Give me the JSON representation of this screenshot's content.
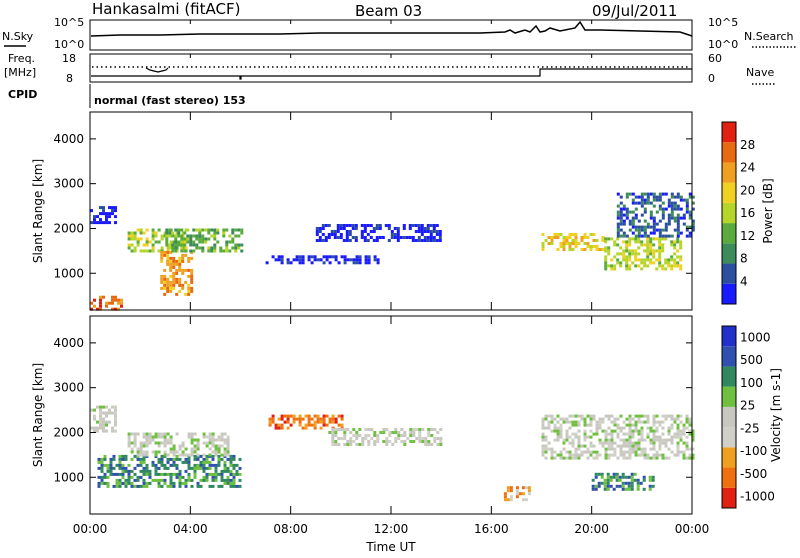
{
  "header": {
    "station": "Hankasalmi (fitACF)",
    "beam": "Beam 03",
    "date": "09/Jul/2011"
  },
  "summary_labels": {
    "nsky": "N.Sky",
    "nsearch": "N.Search",
    "freq_line1": "Freq.",
    "freq_line2": "[MHz]",
    "nave": "Nave",
    "cpid": "CPID",
    "cpid_text": "normal (fast stereo) 153",
    "noise_ticks_left": [
      "10^5",
      "10^0"
    ],
    "noise_ticks_right": [
      "10^5",
      "10^0"
    ],
    "freq_ticks": [
      "18",
      "8"
    ],
    "nave_ticks": [
      "60",
      "0"
    ]
  },
  "colors": {
    "power": [
      "#1a1aff",
      "#2a4fa0",
      "#3d8a5a",
      "#5aab3c",
      "#b5d52a",
      "#f0d020",
      "#f0a020",
      "#e86a10",
      "#e02010"
    ],
    "velocity": [
      "#2030c8",
      "#3050b0",
      "#308860",
      "#70c040",
      "#c8c8c0",
      "#d0d0c8",
      "#f0a020",
      "#f07010",
      "#e02010"
    ],
    "noise_line": "#000000"
  },
  "chart_data": [
    {
      "type": "heatmap",
      "name": "power",
      "title": "",
      "xlabel": "Time UT",
      "ylabel": "Slant Range [km]",
      "x_ticks": [
        "00:00",
        "04:00",
        "08:00",
        "12:00",
        "16:00",
        "20:00",
        "00:00"
      ],
      "xlim_hours": [
        0,
        24
      ],
      "y_ticks": [
        1000,
        2000,
        3000,
        4000
      ],
      "ylim": [
        180,
        4600
      ],
      "colorbar": {
        "label": "Power [dB]",
        "ticks": [
          "4",
          "8",
          "12",
          "16",
          "20",
          "24",
          "28"
        ]
      },
      "regions": [
        {
          "t0": 0.0,
          "t1": 1.0,
          "r0": 2100,
          "r1": 2500,
          "level": 0
        },
        {
          "t0": 0.0,
          "t1": 1.2,
          "r0": 200,
          "r1": 500,
          "level": 7
        },
        {
          "t0": 1.5,
          "t1": 3.8,
          "r0": 1500,
          "r1": 2000,
          "level": 4
        },
        {
          "t0": 2.8,
          "t1": 4.0,
          "r0": 500,
          "r1": 1500,
          "level": 6
        },
        {
          "t0": 3.0,
          "t1": 6.0,
          "r0": 1500,
          "r1": 2000,
          "level": 3
        },
        {
          "t0": 7.0,
          "t1": 11.5,
          "r0": 1200,
          "r1": 1400,
          "level": 0
        },
        {
          "t0": 9.0,
          "t1": 14.0,
          "r0": 1700,
          "r1": 2100,
          "level": 0
        },
        {
          "t0": 18.0,
          "t1": 20.5,
          "r0": 1500,
          "r1": 1900,
          "level": 5
        },
        {
          "t0": 20.5,
          "t1": 23.5,
          "r0": 1100,
          "r1": 1800,
          "level": 4
        },
        {
          "t0": 21.0,
          "t1": 24.0,
          "r0": 1800,
          "r1": 2800,
          "level": 1
        }
      ]
    },
    {
      "type": "heatmap",
      "name": "velocity",
      "title": "",
      "xlabel": "Time UT",
      "ylabel": "Slant Range [km]",
      "x_ticks": [
        "00:00",
        "04:00",
        "08:00",
        "12:00",
        "16:00",
        "20:00",
        "00:00"
      ],
      "xlim_hours": [
        0,
        24
      ],
      "y_ticks": [
        1000,
        2000,
        3000,
        4000
      ],
      "ylim": [
        180,
        4600
      ],
      "colorbar": {
        "label": "Velocity [m s-1]",
        "ticks": [
          "1000",
          "500",
          "100",
          "25",
          "-25",
          "-100",
          "-500",
          "-1000"
        ]
      },
      "regions": [
        {
          "t0": 0.0,
          "t1": 1.0,
          "r0": 2000,
          "r1": 2600,
          "level": 4
        },
        {
          "t0": 0.3,
          "t1": 6.0,
          "r0": 800,
          "r1": 1500,
          "level": 2
        },
        {
          "t0": 1.5,
          "t1": 5.5,
          "r0": 1500,
          "r1": 2000,
          "level": 4
        },
        {
          "t0": 7.0,
          "t1": 10.0,
          "r0": 2100,
          "r1": 2400,
          "level": 7
        },
        {
          "t0": 9.5,
          "t1": 14.0,
          "r0": 1700,
          "r1": 2100,
          "level": 4
        },
        {
          "t0": 16.5,
          "t1": 17.5,
          "r0": 500,
          "r1": 800,
          "level": 6
        },
        {
          "t0": 18.0,
          "t1": 24.0,
          "r0": 1400,
          "r1": 2400,
          "level": 4
        },
        {
          "t0": 20.0,
          "t1": 22.5,
          "r0": 700,
          "r1": 1100,
          "level": 2
        }
      ]
    }
  ]
}
